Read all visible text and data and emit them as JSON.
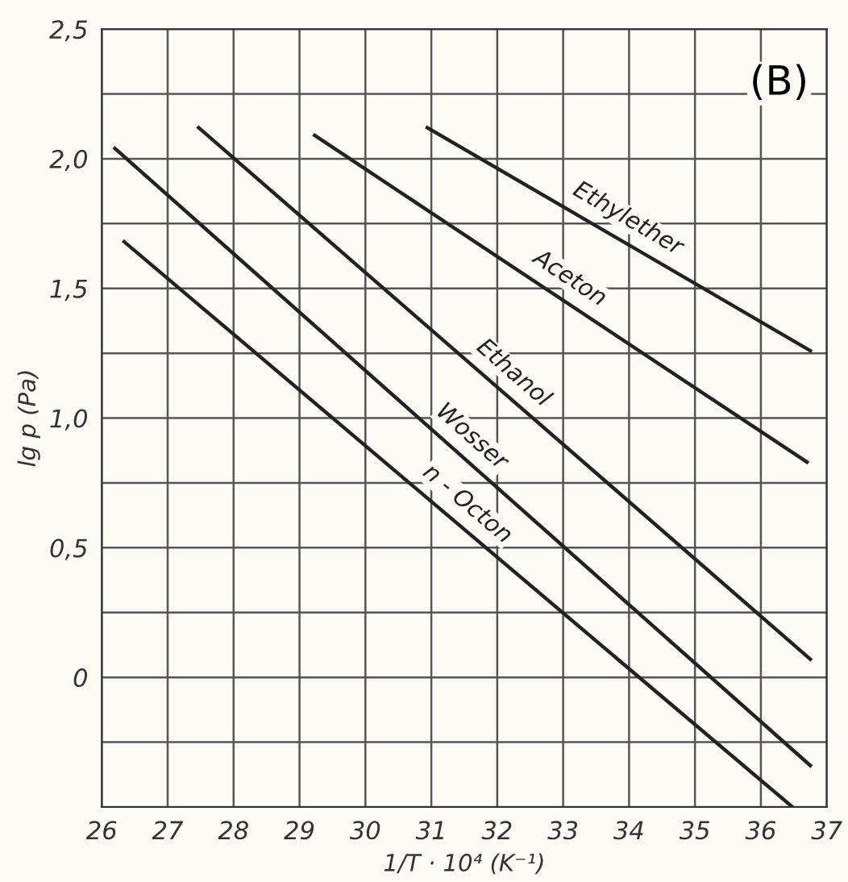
{
  "chart_data": {
    "type": "line",
    "xlabel": "1/T · 10⁴ (K⁻¹)",
    "ylabel": "lg p (Pa)",
    "series": [
      {
        "name": "Ethylether",
        "color": "#222222",
        "x": [
          30.94,
          36.75
        ],
        "values": [
          2.12,
          1.26
        ]
      },
      {
        "name": "Aceton",
        "color": "#222222",
        "x": [
          29.23,
          36.7
        ],
        "values": [
          2.09,
          0.83
        ]
      },
      {
        "name": "Ethanol",
        "color": "#222222",
        "x": [
          27.47,
          36.75
        ],
        "values": [
          2.12,
          0.07
        ]
      },
      {
        "name": "Wosser",
        "color": "#222222",
        "x": [
          26.2,
          36.75
        ],
        "values": [
          2.04,
          -0.34
        ]
      },
      {
        "name": "n - Octon",
        "color": "#222222",
        "x": [
          26.34,
          36.48
        ],
        "values": [
          1.68,
          -0.5
        ]
      }
    ],
    "xlim": [
      26,
      37
    ],
    "xticks": [
      26,
      27,
      28,
      29,
      30,
      31,
      32,
      33,
      34,
      35,
      36,
      37
    ],
    "ylim": [
      -0.5,
      2.5
    ],
    "yticks": [
      {
        "value": -0.5,
        "label": null
      },
      {
        "value": -0.25,
        "label": null
      },
      {
        "value": 0,
        "label": "0"
      },
      {
        "value": 0.25,
        "label": null
      },
      {
        "value": 0.5,
        "label": "0,5"
      },
      {
        "value": 0.75,
        "label": null
      },
      {
        "value": 1.0,
        "label": "1,0"
      },
      {
        "value": 1.25,
        "label": null
      },
      {
        "value": 1.5,
        "label": "1,5"
      },
      {
        "value": 1.75,
        "label": null
      },
      {
        "value": 2.0,
        "label": "2,0"
      },
      {
        "value": 2.25,
        "label": null
      },
      {
        "value": 2.5,
        "label": "2,5"
      }
    ],
    "grid": true,
    "marker": "none",
    "line_style": "solid",
    "legend": false,
    "annotations": [
      "(B)"
    ]
  }
}
